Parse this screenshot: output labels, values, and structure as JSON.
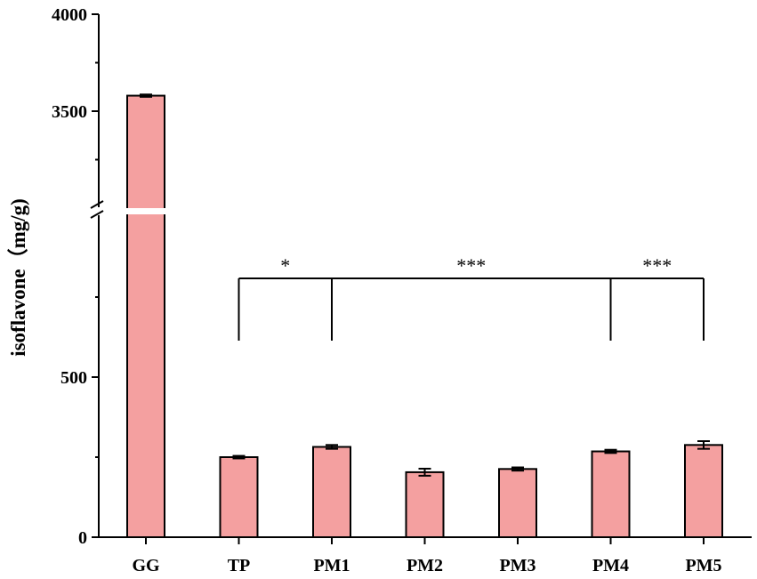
{
  "chart_data": {
    "type": "bar",
    "title": "",
    "xlabel": "",
    "ylabel": "isoflavone（mg/g)",
    "categories": [
      "GG",
      "TP",
      "PM1",
      "PM2",
      "PM3",
      "PM4",
      "PM5"
    ],
    "values": [
      3580,
      250,
      282,
      203,
      213,
      268,
      288
    ],
    "errors": [
      6,
      4,
      6,
      11,
      5,
      5,
      12
    ],
    "axis_break": true,
    "y_segments": [
      {
        "range": [
          0,
          1000
        ],
        "ticks": [
          0,
          500
        ]
      },
      {
        "range": [
          3000,
          4000
        ],
        "ticks": [
          3500,
          4000
        ]
      }
    ],
    "significance": [
      {
        "from": "TP",
        "to": "PM1",
        "label": "*"
      },
      {
        "from": "PM1",
        "to": "PM4",
        "label": "***"
      },
      {
        "from": "PM4",
        "to": "PM5",
        "label": "***"
      }
    ],
    "colors": {
      "bar": "#f4a0a0",
      "axis": "#000000"
    }
  }
}
